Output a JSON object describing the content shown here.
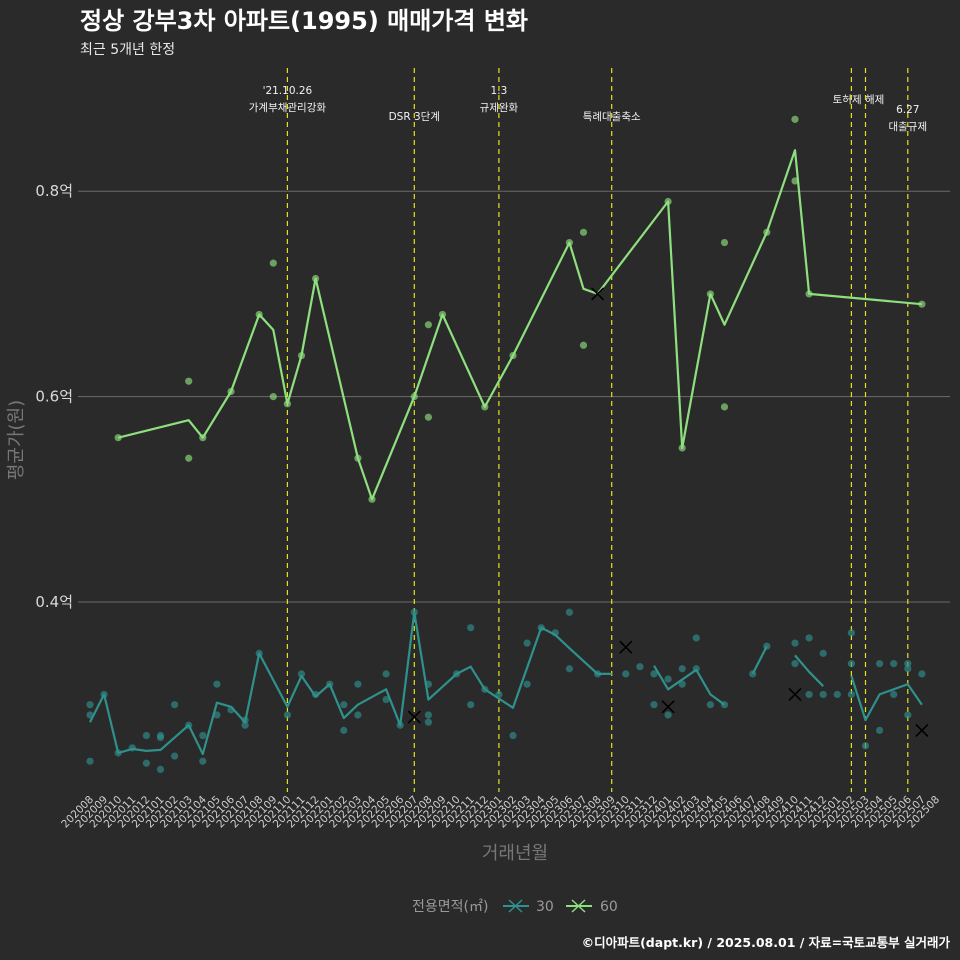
{
  "header": {
    "title": "정상 강부3차 아파트(1995) 매매가격 변화",
    "subtitle": "최근 5개년 한정"
  },
  "caption": "©디아파트(dapt.kr) / 2025.08.01 / 자료=국토교통부 실거래가",
  "colors": {
    "s30": "#2e918c",
    "s60": "#8ee07e",
    "event": "#e2e21e",
    "grid": "#6a6a6a",
    "background": "#2b2a2b"
  },
  "chart_data": {
    "type": "line",
    "xlabel": "거래년월",
    "ylabel": "평균가(원)",
    "y_ticks": [
      {
        "value": 0.4,
        "label": "0.4억"
      },
      {
        "value": 0.6,
        "label": "0.6억"
      },
      {
        "value": 0.8,
        "label": "0.8억"
      }
    ],
    "ylim": [
      0.215,
      0.92
    ],
    "categories": [
      "202008",
      "202009",
      "202010",
      "202011",
      "202012",
      "202101",
      "202102",
      "202103",
      "202104",
      "202105",
      "202106",
      "202107",
      "202108",
      "202109",
      "202110",
      "202111",
      "202112",
      "202201",
      "202202",
      "202203",
      "202204",
      "202205",
      "202206",
      "202207",
      "202208",
      "202209",
      "202210",
      "202211",
      "202212",
      "202301",
      "202302",
      "202303",
      "202304",
      "202305",
      "202306",
      "202307",
      "202308",
      "202309",
      "202310",
      "202311",
      "202312",
      "202401",
      "202402",
      "202403",
      "202404",
      "202405",
      "202406",
      "202407",
      "202408",
      "202409",
      "202410",
      "202411",
      "202412",
      "202501",
      "202502",
      "202503",
      "202504",
      "202505",
      "202506",
      "202507",
      "202508"
    ],
    "legend": {
      "title": "전용면적(㎡)",
      "position": "bottom",
      "items": [
        "30",
        "60"
      ]
    },
    "events": [
      {
        "x": "202110",
        "line1": "'21.10.26",
        "line2": "가계부채관리강화"
      },
      {
        "x": "202207",
        "line1": "",
        "line2": "DSR 3단계"
      },
      {
        "x": "202301",
        "line1": "1.3",
        "line2": "규제완화"
      },
      {
        "x": "202309",
        "line1": "",
        "line2": "특례대출축소"
      },
      {
        "x": "202502",
        "line1": "토허제 해제",
        "line2": ""
      },
      {
        "x": "202503",
        "line1": "",
        "line2": ""
      },
      {
        "x": "202506",
        "line1": "6.27",
        "line2": "대출규제"
      }
    ],
    "series": [
      {
        "name": "30",
        "segments": [
          [
            [
              "202008",
              0.283
            ],
            [
              "202009",
              0.31
            ],
            [
              "202010",
              0.253
            ],
            [
              "202011",
              0.257
            ],
            [
              "202012",
              0.255
            ],
            [
              "202101",
              0.256
            ],
            [
              "202103",
              0.28
            ],
            [
              "202104",
              0.252
            ],
            [
              "202105",
              0.302
            ],
            [
              "202106",
              0.298
            ],
            [
              "202107",
              0.283
            ],
            [
              "202108",
              0.35
            ],
            [
              "202110",
              0.298
            ],
            [
              "202111",
              0.328
            ],
            [
              "202112",
              0.308
            ],
            [
              "202201",
              0.32
            ],
            [
              "202202",
              0.287
            ],
            [
              "202203",
              0.3
            ],
            [
              "202205",
              0.315
            ],
            [
              "202206",
              0.28
            ],
            [
              "202207",
              0.39
            ],
            [
              "202208",
              0.305
            ],
            [
              "202210",
              0.33
            ],
            [
              "202211",
              0.337
            ],
            [
              "202212",
              0.315
            ],
            [
              "202302",
              0.297
            ],
            [
              "202304",
              0.375
            ],
            [
              "202305",
              0.368
            ],
            [
              "202306",
              0.355
            ],
            [
              "202308",
              0.33
            ],
            [
              "202309",
              0.33
            ]
          ],
          [
            [
              "202312",
              0.338
            ],
            [
              "202401",
              0.315
            ],
            [
              "202403",
              0.334
            ],
            [
              "202404",
              0.31
            ],
            [
              "202405",
              0.3
            ]
          ],
          [
            [
              "202407",
              0.33
            ],
            [
              "202408",
              0.357
            ]
          ],
          [
            [
              "202410",
              0.348
            ],
            [
              "202411",
              0.332
            ],
            [
              "202412",
              0.318
            ]
          ],
          [
            [
              "202502",
              0.328
            ],
            [
              "202503",
              0.285
            ],
            [
              "202504",
              0.31
            ],
            [
              "202506",
              0.32
            ],
            [
              "202507",
              0.3
            ]
          ]
        ],
        "points": [
          [
            "202008",
            0.3
          ],
          [
            "202008",
            0.29
          ],
          [
            "202008",
            0.245
          ],
          [
            "202009",
            0.31
          ],
          [
            "202010",
            0.253
          ],
          [
            "202011",
            0.258
          ],
          [
            "202012",
            0.27
          ],
          [
            "202012",
            0.243
          ],
          [
            "202101",
            0.268
          ],
          [
            "202101",
            0.27
          ],
          [
            "202101",
            0.237
          ],
          [
            "202102",
            0.3
          ],
          [
            "202102",
            0.25
          ],
          [
            "202103",
            0.28
          ],
          [
            "202104",
            0.27
          ],
          [
            "202104",
            0.245
          ],
          [
            "202105",
            0.32
          ],
          [
            "202105",
            0.29
          ],
          [
            "202106",
            0.295
          ],
          [
            "202107",
            0.28
          ],
          [
            "202107",
            0.285
          ],
          [
            "202108",
            0.35
          ],
          [
            "202110",
            0.29
          ],
          [
            "202111",
            0.33
          ],
          [
            "202112",
            0.31
          ],
          [
            "202201",
            0.32
          ],
          [
            "202202",
            0.3
          ],
          [
            "202202",
            0.275
          ],
          [
            "202203",
            0.32
          ],
          [
            "202203",
            0.29
          ],
          [
            "202205",
            0.33
          ],
          [
            "202205",
            0.305
          ],
          [
            "202206",
            0.28
          ],
          [
            "202207",
            0.39
          ],
          [
            "202208",
            0.32
          ],
          [
            "202208",
            0.29
          ],
          [
            "202208",
            0.283
          ],
          [
            "202210",
            0.33
          ],
          [
            "202211",
            0.3
          ],
          [
            "202211",
            0.375
          ],
          [
            "202212",
            0.315
          ],
          [
            "202301",
            0.31
          ],
          [
            "202302",
            0.27
          ],
          [
            "202303",
            0.32
          ],
          [
            "202303",
            0.36
          ],
          [
            "202304",
            0.375
          ],
          [
            "202305",
            0.37
          ],
          [
            "202306",
            0.335
          ],
          [
            "202306",
            0.39
          ],
          [
            "202308",
            0.33
          ],
          [
            "202310",
            0.33
          ],
          [
            "202311",
            0.337
          ],
          [
            "202312",
            0.3
          ],
          [
            "202312",
            0.33
          ],
          [
            "202401",
            0.29
          ],
          [
            "202401",
            0.325
          ],
          [
            "202402",
            0.335
          ],
          [
            "202402",
            0.32
          ],
          [
            "202403",
            0.365
          ],
          [
            "202403",
            0.335
          ],
          [
            "202404",
            0.3
          ],
          [
            "202405",
            0.3
          ],
          [
            "202407",
            0.33
          ],
          [
            "202408",
            0.357
          ],
          [
            "202410",
            0.36
          ],
          [
            "202410",
            0.34
          ],
          [
            "202411",
            0.365
          ],
          [
            "202411",
            0.31
          ],
          [
            "202412",
            0.35
          ],
          [
            "202412",
            0.31
          ],
          [
            "202501",
            0.31
          ],
          [
            "202502",
            0.37
          ],
          [
            "202502",
            0.34
          ],
          [
            "202502",
            0.31
          ],
          [
            "202503",
            0.26
          ],
          [
            "202504",
            0.34
          ],
          [
            "202504",
            0.275
          ],
          [
            "202505",
            0.34
          ],
          [
            "202505",
            0.31
          ],
          [
            "202506",
            0.34
          ],
          [
            "202506",
            0.335
          ],
          [
            "202506",
            0.29
          ],
          [
            "202507",
            0.33
          ]
        ],
        "x_marks": [
          [
            "202207",
            0.288
          ],
          [
            "202310",
            0.356
          ],
          [
            "202401",
            0.298
          ],
          [
            "202410",
            0.31
          ],
          [
            "202507",
            0.275
          ]
        ]
      },
      {
        "name": "60",
        "segments": [
          [
            [
              "202010",
              0.56
            ],
            [
              "202103",
              0.577
            ],
            [
              "202104",
              0.56
            ],
            [
              "202106",
              0.605
            ],
            [
              "202108",
              0.68
            ],
            [
              "202109",
              0.665
            ],
            [
              "202110",
              0.593
            ],
            [
              "202111",
              0.64
            ],
            [
              "202112",
              0.715
            ],
            [
              "202203",
              0.54
            ],
            [
              "202204",
              0.5
            ],
            [
              "202207",
              0.6
            ],
            [
              "202209",
              0.68
            ],
            [
              "202212",
              0.59
            ],
            [
              "202302",
              0.64
            ],
            [
              "202306",
              0.75
            ],
            [
              "202307",
              0.705
            ],
            [
              "202308",
              0.7
            ],
            [
              "202401",
              0.79
            ],
            [
              "202402",
              0.55
            ],
            [
              "202404",
              0.7
            ],
            [
              "202405",
              0.67
            ],
            [
              "202408",
              0.76
            ],
            [
              "202410",
              0.84
            ],
            [
              "202411",
              0.7
            ],
            [
              "202507",
              0.69
            ]
          ]
        ],
        "points": [
          [
            "202010",
            0.56
          ],
          [
            "202103",
            0.615
          ],
          [
            "202103",
            0.54
          ],
          [
            "202104",
            0.56
          ],
          [
            "202106",
            0.605
          ],
          [
            "202108",
            0.68
          ],
          [
            "202109",
            0.73
          ],
          [
            "202109",
            0.6
          ],
          [
            "202110",
            0.593
          ],
          [
            "202111",
            0.64
          ],
          [
            "202112",
            0.715
          ],
          [
            "202203",
            0.54
          ],
          [
            "202204",
            0.5
          ],
          [
            "202207",
            0.6
          ],
          [
            "202208",
            0.67
          ],
          [
            "202208",
            0.58
          ],
          [
            "202209",
            0.68
          ],
          [
            "202212",
            0.59
          ],
          [
            "202302",
            0.64
          ],
          [
            "202306",
            0.75
          ],
          [
            "202307",
            0.76
          ],
          [
            "202307",
            0.65
          ],
          [
            "202401",
            0.79
          ],
          [
            "202402",
            0.55
          ],
          [
            "202404",
            0.7
          ],
          [
            "202405",
            0.75
          ],
          [
            "202405",
            0.59
          ],
          [
            "202408",
            0.76
          ],
          [
            "202410",
            0.87
          ],
          [
            "202410",
            0.81
          ],
          [
            "202411",
            0.7
          ],
          [
            "202507",
            0.69
          ]
        ],
        "x_marks": [
          [
            "202308",
            0.7
          ]
        ]
      }
    ]
  }
}
